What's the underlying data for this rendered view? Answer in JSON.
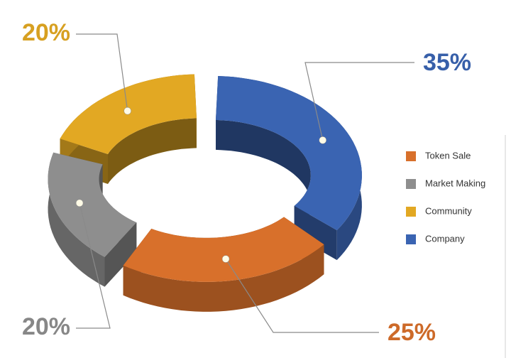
{
  "chart_data": {
    "type": "donut",
    "categories": [
      "Token Sale",
      "Market Making",
      "Community",
      "Company"
    ],
    "values": [
      25,
      20,
      20,
      35
    ],
    "value_labels": [
      "25%",
      "20%",
      "20%",
      "35%"
    ],
    "colors": [
      "#d8702b",
      "#8e8e8e",
      "#e2a823",
      "#3a64b2"
    ],
    "legend": "right"
  }
}
